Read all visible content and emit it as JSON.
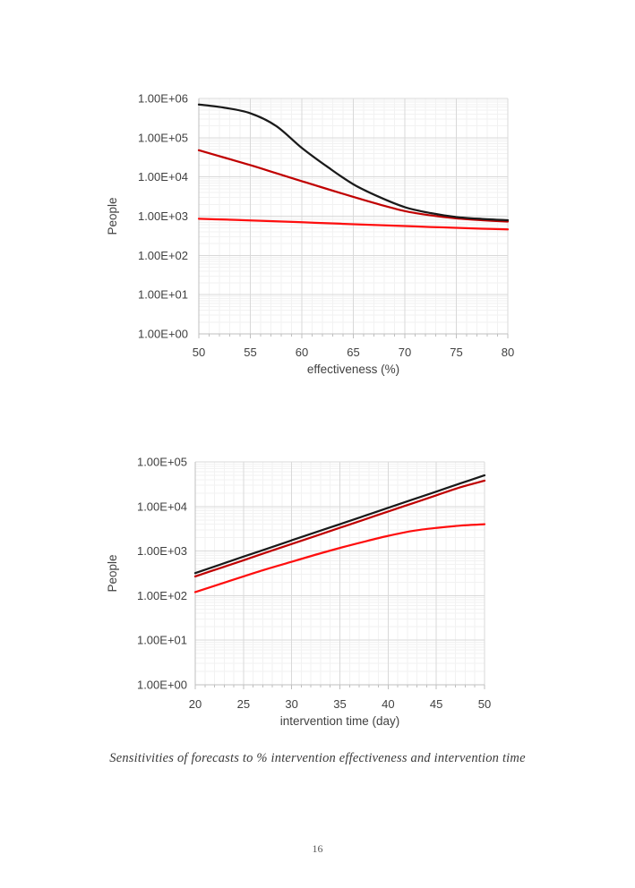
{
  "page": {
    "caption": "Sensitivities of forecasts to % intervention effectiveness and intervention time",
    "number": "16"
  },
  "colors": {
    "series_black": "#1a1a1a",
    "series_dark_red": "#c00000",
    "series_red": "#fe0e0e",
    "grid_major": "#d9d9d9",
    "grid_minor": "#f2f2f2",
    "axis_line": "#bfbfbf",
    "tick_text": "#404040"
  },
  "chart_data": [
    {
      "id": "effectiveness",
      "type": "line",
      "title": "",
      "xlabel": "effectiveness (%)",
      "ylabel": "People",
      "x_range": [
        50,
        80
      ],
      "x_major_ticks": [
        50,
        55,
        60,
        65,
        70,
        75,
        80
      ],
      "x_minor_step": 1,
      "y_scale": "log",
      "y_decades": [
        0,
        6
      ],
      "y_tick_labels": [
        "1.00E+06",
        "1.00E+05",
        "1.00E+04",
        "1.00E+03",
        "1.00E+02",
        "1.00E+01",
        "1.00E+00"
      ],
      "grid": "major+minor",
      "legend": "none",
      "x": [
        50,
        52.5,
        55,
        57.5,
        60,
        62.5,
        65,
        67.5,
        70,
        72.5,
        75,
        77.5,
        80
      ],
      "series": [
        {
          "name": "red-flat-lower",
          "color_key": "series_red",
          "values": [
            860,
            820,
            780,
            740,
            700,
            660,
            625,
            590,
            560,
            530,
            505,
            480,
            460
          ]
        },
        {
          "name": "dark-red-declining",
          "color_key": "series_dark_red",
          "values": [
            48000,
            31000,
            20000,
            12500,
            7800,
            4900,
            3100,
            2000,
            1350,
            1050,
            880,
            790,
            730
          ]
        },
        {
          "name": "black-sigmoid",
          "color_key": "series_black",
          "values": [
            700000,
            580000,
            420000,
            200000,
            55000,
            18000,
            6500,
            3100,
            1700,
            1200,
            950,
            850,
            790
          ]
        }
      ]
    },
    {
      "id": "intervention",
      "type": "line",
      "title": "",
      "xlabel": "intervention time (day)",
      "ylabel": "People",
      "x_range": [
        20,
        50
      ],
      "x_major_ticks": [
        20,
        25,
        30,
        35,
        40,
        45,
        50
      ],
      "x_minor_step": 1,
      "y_scale": "log",
      "y_decades": [
        0,
        5
      ],
      "y_tick_labels": [
        "1.00E+05",
        "1.00E+04",
        "1.00E+03",
        "1.00E+02",
        "1.00E+01",
        "1.00E+00"
      ],
      "grid": "major+minor",
      "legend": "none",
      "x": [
        20,
        22.5,
        25,
        27.5,
        30,
        32.5,
        35,
        37.5,
        40,
        42.5,
        45,
        47.5,
        50
      ],
      "series": [
        {
          "name": "red-lower-curved",
          "color_key": "series_red",
          "values": [
            120,
            180,
            270,
            400,
            575,
            830,
            1175,
            1620,
            2190,
            2820,
            3310,
            3720,
            4000
          ]
        },
        {
          "name": "dark-red-middle",
          "color_key": "series_dark_red",
          "values": [
            270,
            410,
            620,
            950,
            1440,
            2190,
            3330,
            5060,
            7700,
            11700,
            17800,
            27000,
            38000
          ]
        },
        {
          "name": "black-upper",
          "color_key": "series_black",
          "values": [
            320,
            490,
            750,
            1140,
            1740,
            2650,
            4000,
            6100,
            9300,
            14200,
            21600,
            33000,
            50000
          ]
        }
      ]
    }
  ]
}
